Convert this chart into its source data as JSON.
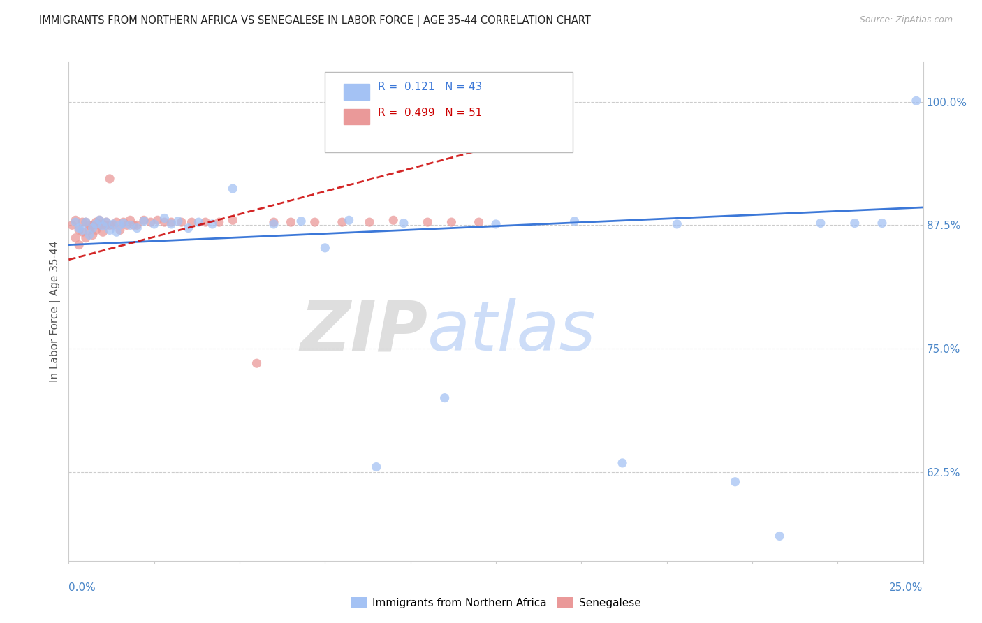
{
  "title": "IMMIGRANTS FROM NORTHERN AFRICA VS SENEGALESE IN LABOR FORCE | AGE 35-44 CORRELATION CHART",
  "source": "Source: ZipAtlas.com",
  "ylabel": "In Labor Force | Age 35-44",
  "r_blue": 0.121,
  "n_blue": 43,
  "r_pink": 0.499,
  "n_pink": 51,
  "color_blue": "#a4c2f4",
  "color_pink": "#ea9999",
  "color_blue_line": "#3c78d8",
  "color_pink_line": "#cc0000",
  "legend_label_blue": "Immigrants from Northern Africa",
  "legend_label_pink": "Senegalese",
  "ytick_labels": [
    "62.5%",
    "75.0%",
    "87.5%",
    "100.0%"
  ],
  "ytick_values": [
    0.625,
    0.75,
    0.875,
    1.0
  ],
  "xmin": 0.0,
  "xmax": 0.25,
  "ymin": 0.535,
  "ymax": 1.04,
  "watermark_zip": "ZIP",
  "watermark_atlas": "atlas",
  "blue_x": [
    0.002,
    0.003,
    0.004,
    0.005,
    0.006,
    0.007,
    0.008,
    0.009,
    0.01,
    0.011,
    0.012,
    0.013,
    0.014,
    0.015,
    0.016,
    0.018,
    0.02,
    0.022,
    0.025,
    0.028,
    0.03,
    0.032,
    0.035,
    0.038,
    0.042,
    0.048,
    0.06,
    0.068,
    0.075,
    0.082,
    0.09,
    0.098,
    0.11,
    0.125,
    0.148,
    0.162,
    0.178,
    0.195,
    0.208,
    0.22,
    0.23,
    0.238,
    0.248
  ],
  "blue_y": [
    0.878,
    0.872,
    0.87,
    0.878,
    0.865,
    0.872,
    0.876,
    0.88,
    0.874,
    0.878,
    0.87,
    0.876,
    0.868,
    0.875,
    0.877,
    0.875,
    0.872,
    0.879,
    0.876,
    0.882,
    0.876,
    0.879,
    0.872,
    0.878,
    0.876,
    0.912,
    0.876,
    0.879,
    0.852,
    0.88,
    0.63,
    0.877,
    0.7,
    0.876,
    0.879,
    0.634,
    0.876,
    0.615,
    0.56,
    0.877,
    0.877,
    0.877,
    1.001
  ],
  "pink_x": [
    0.001,
    0.002,
    0.002,
    0.003,
    0.003,
    0.004,
    0.004,
    0.005,
    0.005,
    0.006,
    0.006,
    0.007,
    0.007,
    0.008,
    0.008,
    0.009,
    0.009,
    0.01,
    0.01,
    0.011,
    0.011,
    0.012,
    0.012,
    0.013,
    0.014,
    0.015,
    0.016,
    0.017,
    0.018,
    0.019,
    0.02,
    0.022,
    0.024,
    0.026,
    0.028,
    0.03,
    0.033,
    0.036,
    0.04,
    0.044,
    0.048,
    0.055,
    0.06,
    0.065,
    0.072,
    0.08,
    0.088,
    0.095,
    0.105,
    0.112,
    0.12
  ],
  "pink_y": [
    0.875,
    0.862,
    0.88,
    0.87,
    0.855,
    0.868,
    0.878,
    0.862,
    0.878,
    0.875,
    0.87,
    0.875,
    0.865,
    0.87,
    0.878,
    0.875,
    0.88,
    0.868,
    0.876,
    0.875,
    0.878,
    0.922,
    0.875,
    0.875,
    0.878,
    0.87,
    0.878,
    0.875,
    0.88,
    0.875,
    0.875,
    0.88,
    0.878,
    0.88,
    0.878,
    0.878,
    0.878,
    0.878,
    0.878,
    0.878,
    0.88,
    0.735,
    0.878,
    0.878,
    0.878,
    0.878,
    0.878,
    0.88,
    0.878,
    0.878,
    0.878
  ],
  "blue_trend_x": [
    0.0,
    0.25
  ],
  "blue_trend_y": [
    0.855,
    0.893
  ],
  "pink_trend_x": [
    0.0,
    0.13
  ],
  "pink_trend_y": [
    0.84,
    0.96
  ]
}
